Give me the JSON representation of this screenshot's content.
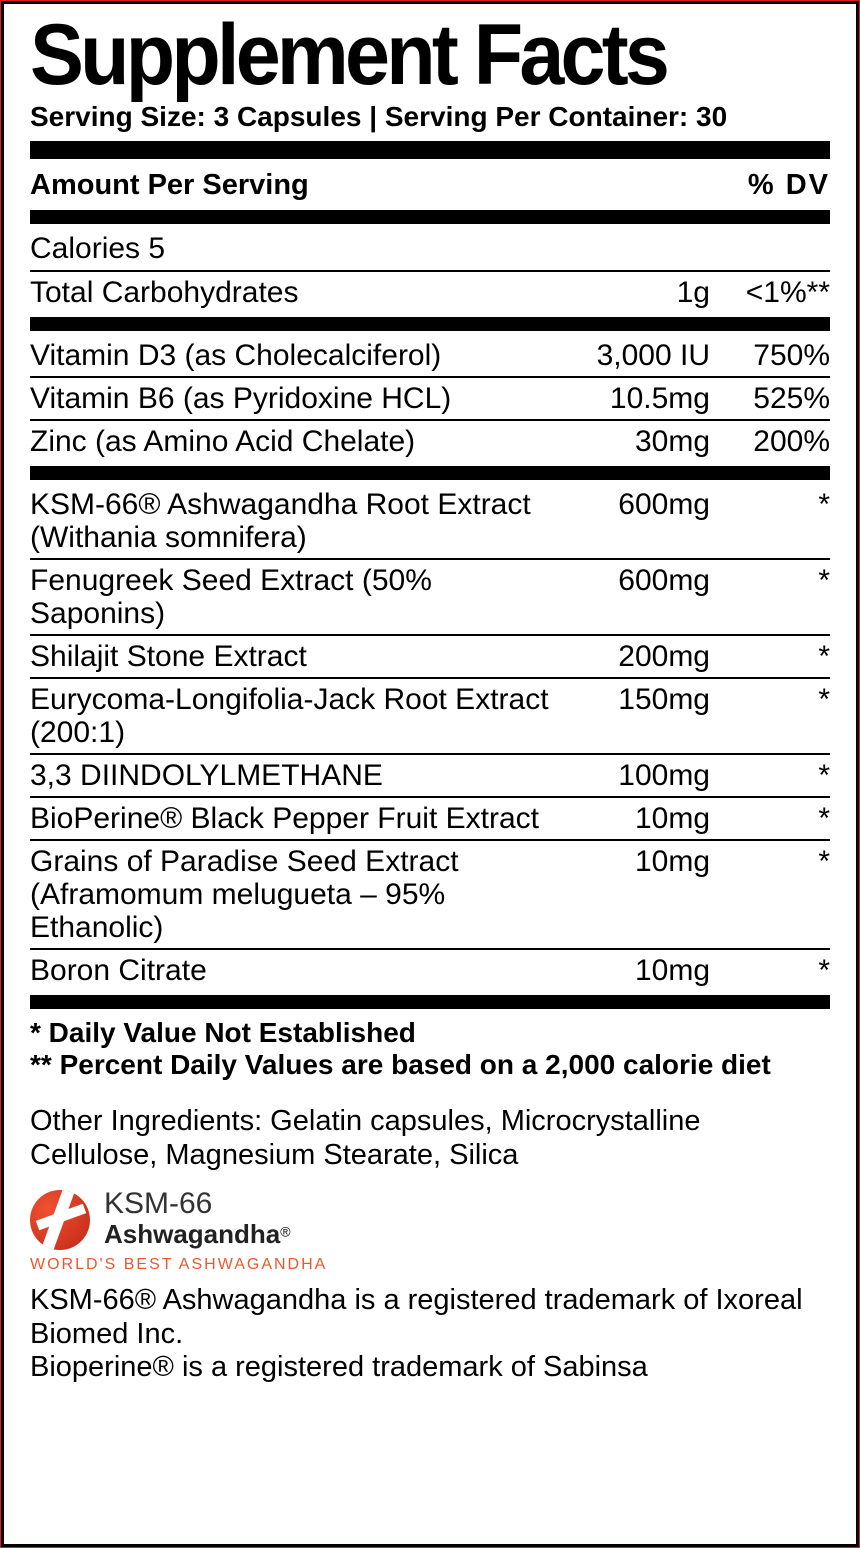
{
  "title": "Supplement Facts",
  "serving_line": "Serving Size: 3 Capsules | Serving Per Container: 30",
  "header": {
    "left": "Amount Per Serving",
    "right": "%  DV"
  },
  "calories_line": "Calories 5",
  "section1": [
    {
      "name": "Total Carbohydrates",
      "amount": "1g",
      "dv": "<1%**"
    }
  ],
  "section2": [
    {
      "name": "Vitamin D3 (as Cholecalciferol)",
      "amount": "3,000 IU",
      "dv": "750%"
    },
    {
      "name": "Vitamin B6 (as Pyridoxine HCL)",
      "amount": "10.5mg",
      "dv": "525%"
    },
    {
      "name": "Zinc (as Amino Acid Chelate)",
      "amount": "30mg",
      "dv": "200%"
    }
  ],
  "section3": [
    {
      "name": "KSM-66® Ashwagandha Root Extract (Withania somnifera)",
      "amount": "600mg",
      "dv": "*"
    },
    {
      "name": "Fenugreek Seed Extract (50% Saponins)",
      "amount": "600mg",
      "dv": "*"
    },
    {
      "name": "Shilajit Stone Extract",
      "amount": "200mg",
      "dv": "*"
    },
    {
      "name": "Eurycoma-Longifolia-Jack Root Extract (200:1)",
      "amount": "150mg",
      "dv": "*"
    },
    {
      "name": "3,3 DIINDOLYLMETHANE",
      "amount": "100mg",
      "dv": "*"
    },
    {
      "name": "BioPerine® Black Pepper Fruit Extract",
      "amount": "10mg",
      "dv": "*"
    },
    {
      "name": "Grains of Paradise Seed Extract (Aframomum melugueta – 95% Ethanolic)",
      "amount": "10mg",
      "dv": "*"
    },
    {
      "name": "Boron Citrate",
      "amount": "10mg",
      "dv": "*"
    }
  ],
  "notes": {
    "line1": "* Daily Value Not Established",
    "line2": "** Percent Daily Values are based on a 2,000 calorie diet"
  },
  "other_ingredients": "Other Ingredients: Gelatin capsules, Microcrystalline Cellulose, Magnesium Stearate, Silica",
  "logo": {
    "line1": "KSM-66",
    "line2": "Ashwagandha",
    "reg": "®",
    "tagline": "WORLD'S BEST ASHWAGANDHA"
  },
  "trademarks": {
    "line1": "KSM-66® Ashwagandha is a registered trademark of Ixoreal Biomed Inc.",
    "line2": "Bioperine® is a registered trademark of Sabinsa"
  },
  "colors": {
    "outline": "#e01b24",
    "border": "#000000",
    "text": "#000000",
    "logo_gradient_from": "#f05030",
    "logo_gradient_to": "#c02818",
    "tagline": "#e85a2c"
  },
  "icon_names": {
    "logo": "ksm66-logo-icon"
  }
}
